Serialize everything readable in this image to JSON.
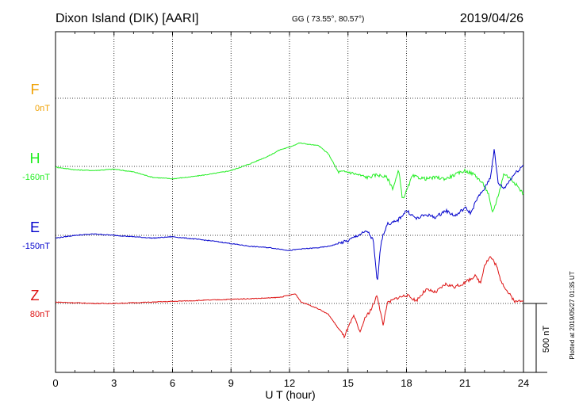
{
  "header": {
    "station": "Dixon Island (DIK)  [AARI]",
    "coords": "GG ( 73.55°,  80.57°)",
    "date": "2019/04/26"
  },
  "side_note": "Plotted at 2019/05/27 01:35 UT",
  "scale_label": "500 nT",
  "colors": {
    "F": "#f0a000",
    "H": "#22ee22",
    "E": "#0000cc",
    "Z": "#dd1111"
  },
  "chart_data": {
    "type": "line",
    "xlabel": "U T (hour)",
    "ylabel": "",
    "xlim": [
      0,
      24
    ],
    "xticks": [
      "0",
      "3",
      "6",
      "9",
      "12",
      "15",
      "18",
      "21",
      "24"
    ],
    "grid": true,
    "scale_bar_nT": 500,
    "series": [
      {
        "name": "F",
        "offset_label": "0nT",
        "x": [],
        "values": []
      },
      {
        "name": "H",
        "offset_label": "-160nT",
        "x": [
          0,
          1,
          2,
          3,
          4,
          5,
          6,
          7,
          8,
          9,
          10,
          11,
          11.5,
          12,
          12.5,
          13,
          13.5,
          14,
          14.5,
          15,
          15.5,
          16,
          16.5,
          17,
          17.3,
          17.6,
          17.8,
          18,
          18.3,
          18.6,
          19,
          19.5,
          20,
          20.5,
          21,
          21.5,
          22,
          22.2,
          22.4,
          22.6,
          22.8,
          23,
          23.5,
          24
        ],
        "values": [
          -5,
          -25,
          -30,
          -20,
          -40,
          -80,
          -90,
          -75,
          -55,
          -30,
          20,
          80,
          120,
          140,
          170,
          160,
          150,
          90,
          -40,
          -40,
          -60,
          -80,
          -60,
          -80,
          -160,
          -30,
          -240,
          -180,
          -70,
          -80,
          -90,
          -80,
          -90,
          -60,
          -30,
          -60,
          -140,
          -200,
          -340,
          -260,
          -160,
          -50,
          -110,
          -200
        ]
      },
      {
        "name": "E",
        "offset_label": "-150nT",
        "x": [
          0,
          1,
          2,
          3,
          4,
          5,
          6,
          7,
          8,
          9,
          10,
          11,
          12,
          12.5,
          13,
          13.5,
          14,
          14.5,
          15,
          15.5,
          16,
          16.3,
          16.5,
          16.7,
          17,
          17.5,
          18,
          18.5,
          19,
          19.5,
          20,
          20.5,
          21,
          21.3,
          21.6,
          22,
          22.3,
          22.5,
          22.7,
          23,
          23.5,
          24
        ],
        "values": [
          -20,
          0,
          10,
          0,
          -10,
          -20,
          -10,
          -25,
          -40,
          -60,
          -80,
          -90,
          -110,
          -100,
          -95,
          -90,
          -80,
          -60,
          -40,
          0,
          30,
          -40,
          -350,
          -40,
          80,
          100,
          180,
          120,
          150,
          130,
          180,
          140,
          200,
          160,
          260,
          340,
          420,
          620,
          380,
          340,
          440,
          510
        ]
      },
      {
        "name": "Z",
        "offset_label": "80nT",
        "x": [
          0,
          1,
          2,
          3,
          4,
          5,
          6,
          7,
          8,
          9,
          10,
          11,
          11.5,
          12,
          12.3,
          12.6,
          13,
          13.5,
          14,
          14.5,
          14.8,
          15,
          15.3,
          15.6,
          15.9,
          16.2,
          16.5,
          16.8,
          17,
          17.5,
          18,
          18.5,
          19,
          19.5,
          20,
          20.5,
          21,
          21.5,
          21.8,
          22,
          22.3,
          22.6,
          22.8,
          23.2,
          23.6,
          24
        ],
        "values": [
          10,
          5,
          0,
          0,
          5,
          10,
          15,
          20,
          25,
          30,
          35,
          40,
          45,
          60,
          70,
          10,
          -10,
          -40,
          -80,
          -180,
          -240,
          -180,
          -90,
          -210,
          -100,
          -40,
          60,
          -160,
          0,
          40,
          60,
          20,
          100,
          80,
          140,
          120,
          150,
          200,
          150,
          280,
          340,
          280,
          180,
          80,
          10,
          30
        ]
      }
    ]
  }
}
